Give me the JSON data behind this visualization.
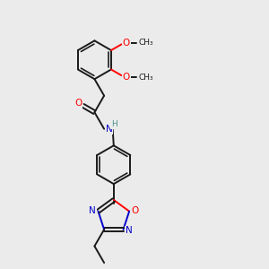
{
  "background_color": "#ebebeb",
  "bond_color": "#1a1a1a",
  "O_color": "#ff0000",
  "N_color": "#0000cd",
  "H_color": "#4a9090",
  "figsize": [
    3.0,
    3.0
  ],
  "dpi": 100,
  "xlim": [
    0,
    10
  ],
  "ylim": [
    0,
    10
  ]
}
